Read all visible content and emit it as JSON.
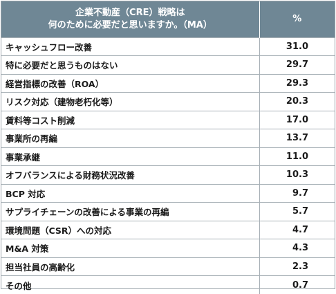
{
  "header": {
    "question_line1": "企業不動産（CRE）戦略は",
    "question_line2": "何のために必要だと思いますか。（MA）",
    "value_col": "%"
  },
  "rows": [
    {
      "label": "キャッシュフロー改善",
      "value": "31.0"
    },
    {
      "label": "特に必要だと思うものはない",
      "value": "29.7"
    },
    {
      "label": "経営指標の改善（ROA）",
      "value": "29.3"
    },
    {
      "label": "リスク対応（建物老朽化等）",
      "value": "20.3"
    },
    {
      "label": "賃料等コスト削減",
      "value": "17.0"
    },
    {
      "label": "事業所の再編",
      "value": "13.7"
    },
    {
      "label": "事業承継",
      "value": "11.0"
    },
    {
      "label": "オフバランスによる財務状況改善",
      "value": "10.3"
    },
    {
      "label": "BCP 対応",
      "value": "9.7"
    },
    {
      "label": "サプライチェーンの改善による事業の再編",
      "value": "5.7"
    },
    {
      "label": "環境問題（CSR）への対応",
      "value": "4.7"
    },
    {
      "label": "M&A 対策",
      "value": "4.3"
    },
    {
      "label": "担当社員の高齢化",
      "value": "2.3"
    },
    {
      "label": "その他",
      "value": "0.7"
    }
  ]
}
